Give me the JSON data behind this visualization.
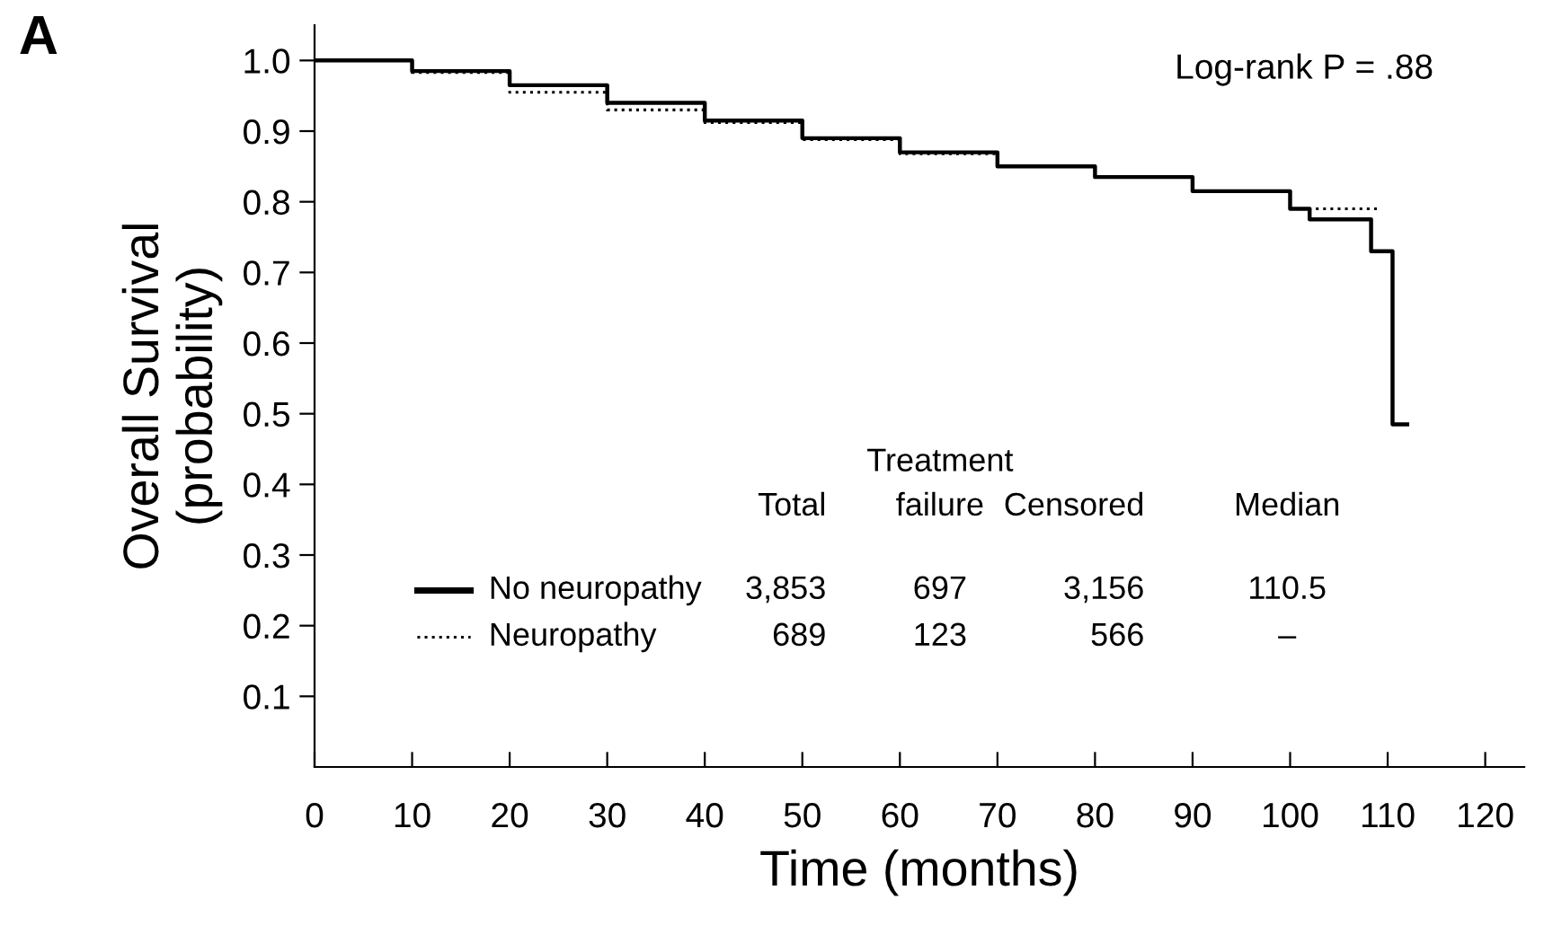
{
  "chart_data": {
    "type": "step",
    "title": "A",
    "xlabel": "Time (months)",
    "ylabel": "Overall Survival\n(probability)",
    "xlim": [
      0,
      124
    ],
    "xticks": [
      0,
      10,
      20,
      30,
      40,
      50,
      60,
      70,
      80,
      90,
      100,
      110,
      120
    ],
    "ylim": [
      0,
      1.05
    ],
    "yticks": [
      {
        "value": 0.1,
        "label": "0.1"
      },
      {
        "value": 0.2,
        "label": "0.2"
      },
      {
        "value": 0.3,
        "label": "0.3"
      },
      {
        "value": 0.4,
        "label": "0.4"
      },
      {
        "value": 0.5,
        "label": "0.5"
      },
      {
        "value": 0.6,
        "label": "0.6"
      },
      {
        "value": 0.7,
        "label": "0.7"
      },
      {
        "value": 0.8,
        "label": "0.8"
      },
      {
        "value": 0.9,
        "label": "0.9"
      },
      {
        "value": 1.0,
        "label": "1.0"
      }
    ],
    "grid": false,
    "legend": "bottom",
    "series": [
      {
        "name": "No neuropathy",
        "color": "#000000",
        "line_style": "solid",
        "x": [
          0,
          10,
          20,
          30,
          40,
          50,
          60,
          70,
          80,
          90,
          100,
          102,
          108.3,
          110.5,
          112
        ],
        "values": [
          1.0,
          0.985,
          0.965,
          0.94,
          0.915,
          0.89,
          0.87,
          0.85,
          0.835,
          0.815,
          0.79,
          0.775,
          0.73,
          0.485,
          0.485
        ]
      },
      {
        "name": "Neuropathy",
        "color": "#000000",
        "line_style": "dotted",
        "x": [
          0,
          10,
          20,
          30,
          40,
          50,
          60,
          70,
          80,
          90,
          100,
          109
        ],
        "values": [
          1.0,
          0.983,
          0.955,
          0.93,
          0.912,
          0.888,
          0.868,
          0.85,
          0.835,
          0.815,
          0.79,
          0.79
        ]
      }
    ],
    "annotations": [
      "Log-rank P = .88",
      "Total",
      "Treatment\nfailure",
      "Censored",
      "Median",
      "3,853",
      "697",
      "3,156",
      "110.5",
      "689",
      "123",
      "566",
      "–"
    ]
  }
}
